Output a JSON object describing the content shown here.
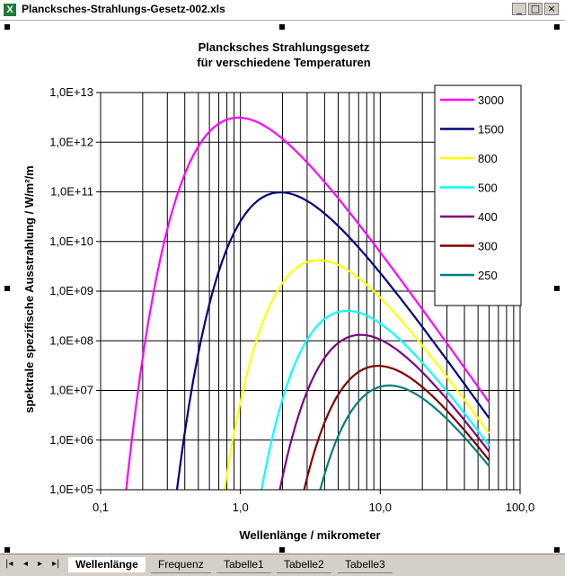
{
  "window": {
    "title": "Plancksches-Strahlungs-Gesetz-002.xls",
    "icon": "excel-icon"
  },
  "sheet_tabs": {
    "active": "Wellenlänge",
    "items": [
      "Wellenlänge",
      "Frequenz",
      "Tabelle1",
      "Tabelle2",
      "Tabelle3"
    ]
  },
  "nav_buttons": [
    "|◂",
    "◂",
    "▸",
    "▸|"
  ],
  "chart_data": {
    "type": "line",
    "title": "Plancksches Strahlungsgesetz",
    "subtitle": "für verschiedene Temperaturen",
    "xlabel": "Wellenlänge / mikrometer",
    "ylabel": "spektrale spezifische Ausstrahlung   / W/m²/m",
    "x_scale": "log",
    "y_scale": "log",
    "xlim": [
      0.1,
      100
    ],
    "ylim": [
      100000,
      10000000000000
    ],
    "x_tick_labels": [
      "0,1",
      "1,0",
      "10,0",
      "100,0"
    ],
    "y_tick_labels": [
      "1,0E+05",
      "1,0E+06",
      "1,0E+07",
      "1,0E+08",
      "1,0E+09",
      "1,0E+10",
      "1,0E+11",
      "1,0E+12",
      "1,0E+13"
    ],
    "x_range_um": [
      0.1,
      60
    ],
    "legend_position": "top-right",
    "series": [
      {
        "name": "3000",
        "temperature_K": 3000,
        "color": "#ff00ff"
      },
      {
        "name": "1500",
        "temperature_K": 1500,
        "color": "#000080"
      },
      {
        "name": "800",
        "temperature_K": 800,
        "color": "#ffff00"
      },
      {
        "name": "500",
        "temperature_K": 500,
        "color": "#00ffff"
      },
      {
        "name": "400",
        "temperature_K": 400,
        "color": "#800080"
      },
      {
        "name": "300",
        "temperature_K": 300,
        "color": "#800000"
      },
      {
        "name": "250",
        "temperature_K": 250,
        "color": "#008080"
      }
    ]
  }
}
